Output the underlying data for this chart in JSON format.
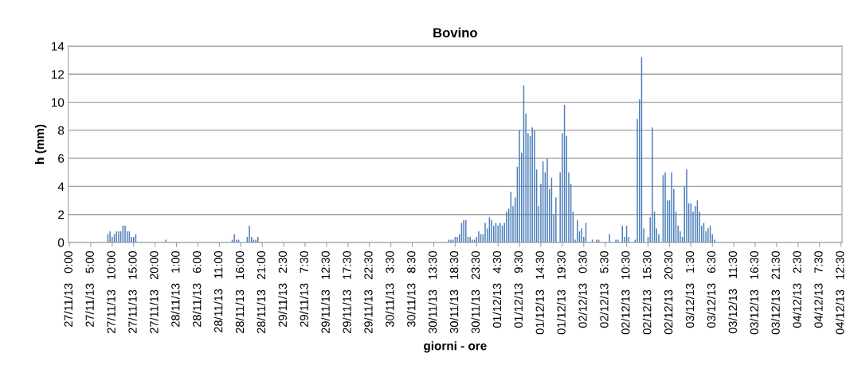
{
  "chart_data": {
    "type": "bar",
    "title": "Bovino",
    "xlabel": "giorni - ore",
    "ylabel": "h (mm)",
    "categories": [
      "27/11/13 0:00",
      null,
      null,
      null,
      null,
      null,
      null,
      null,
      null,
      null,
      "27/11/13 5:00",
      null,
      null,
      null,
      null,
      null,
      null,
      null,
      null,
      null,
      "27/11/13 10:00",
      null,
      null,
      null,
      null,
      null,
      null,
      null,
      null,
      null,
      "27/11/13 15:00",
      null,
      null,
      null,
      null,
      null,
      null,
      null,
      null,
      null,
      "27/11/13 20:00",
      null,
      null,
      null,
      null,
      null,
      null,
      null,
      null,
      null,
      "28/11/13 1:00",
      null,
      null,
      null,
      null,
      null,
      null,
      null,
      null,
      null,
      "28/11/13 6:00",
      null,
      null,
      null,
      null,
      null,
      null,
      null,
      null,
      null,
      "28/11/13 11:00",
      null,
      null,
      null,
      null,
      null,
      null,
      null,
      null,
      null,
      "28/11/13 16:00",
      null,
      null,
      null,
      null,
      null,
      null,
      null,
      null,
      null,
      "28/11/13 21:00",
      null,
      null,
      null,
      null,
      null,
      null,
      null,
      null,
      null,
      "29/11/13 2:30",
      null,
      null,
      null,
      null,
      null,
      null,
      null,
      null,
      null,
      "29/11/13 7:30",
      null,
      null,
      null,
      null,
      null,
      null,
      null,
      null,
      null,
      "29/11/13 12:30",
      null,
      null,
      null,
      null,
      null,
      null,
      null,
      null,
      null,
      "29/11/13 17:30",
      null,
      null,
      null,
      null,
      null,
      null,
      null,
      null,
      null,
      "29/11/13 22:30",
      null,
      null,
      null,
      null,
      null,
      null,
      null,
      null,
      null,
      "30/11/13 3:30",
      null,
      null,
      null,
      null,
      null,
      null,
      null,
      null,
      null,
      "30/11/13 8:30",
      null,
      null,
      null,
      null,
      null,
      null,
      null,
      null,
      null,
      "30/11/13 13:30",
      null,
      null,
      null,
      null,
      null,
      null,
      null,
      null,
      null,
      "30/11/13 18:30",
      null,
      null,
      null,
      null,
      null,
      null,
      null,
      null,
      null,
      "30/11/13 23:30",
      null,
      null,
      null,
      null,
      null,
      null,
      null,
      null,
      null,
      "01/12/13 4:30",
      null,
      null,
      null,
      null,
      null,
      null,
      null,
      null,
      null,
      "01/12/13 9:30",
      null,
      null,
      null,
      null,
      null,
      null,
      null,
      null,
      null,
      "01/12/13 14:30",
      null,
      null,
      null,
      null,
      null,
      null,
      null,
      null,
      null,
      "01/12/13 19:30",
      null,
      null,
      null,
      null,
      null,
      null,
      null,
      null,
      null,
      "02/12/13 0:30",
      null,
      null,
      null,
      null,
      null,
      null,
      null,
      null,
      null,
      "02/12/13 5:30",
      null,
      null,
      null,
      null,
      null,
      null,
      null,
      null,
      null,
      "02/12/13 10:30",
      null,
      null,
      null,
      null,
      null,
      null,
      null,
      null,
      null,
      "02/12/13 15:30",
      null,
      null,
      null,
      null,
      null,
      null,
      null,
      null,
      null,
      "02/12/13 20:30",
      null,
      null,
      null,
      null,
      null,
      null,
      null,
      null,
      null,
      "03/12/13 1:30",
      null,
      null,
      null,
      null,
      null,
      null,
      null,
      null,
      null,
      "03/12/13 6:30",
      null,
      null,
      null,
      null,
      null,
      null,
      null,
      null,
      null,
      "03/12/13 11:30",
      null,
      null,
      null,
      null,
      null,
      null,
      null,
      null,
      null,
      "03/12/13 16:30",
      null,
      null,
      null,
      null,
      null,
      null,
      null,
      null,
      null,
      "03/12/13 21:30",
      null,
      null,
      null,
      null,
      null,
      null,
      null,
      null,
      null,
      "04/12/13 2:30",
      null,
      null,
      null,
      null,
      null,
      null,
      null,
      null,
      null,
      "04/12/13 7:30",
      null,
      null,
      null,
      null,
      null,
      null,
      null,
      null,
      null,
      "04/12/13 12:30"
    ],
    "values": [
      0,
      0,
      0,
      0,
      0,
      0,
      0,
      0,
      0,
      0,
      0,
      0,
      0,
      0,
      0,
      0,
      0,
      0,
      0.6,
      0.8,
      0.4,
      0.6,
      0.8,
      0.8,
      0.8,
      1.2,
      1.2,
      0.8,
      0.8,
      0.4,
      0.4,
      0.6,
      0,
      0,
      0,
      0,
      0,
      0,
      0,
      0,
      0,
      0,
      0,
      0,
      0,
      0.2,
      0,
      0,
      0,
      0,
      0,
      0,
      0,
      0,
      0,
      0,
      0,
      0,
      0,
      0,
      0,
      0,
      0,
      0,
      0,
      0,
      0,
      0,
      0,
      0,
      0,
      0,
      0,
      0,
      0,
      0,
      0.2,
      0.6,
      0.2,
      0.2,
      0,
      0,
      0,
      0.4,
      1.2,
      0.4,
      0.2,
      0.2,
      0.4,
      0,
      0,
      0,
      0,
      0,
      0,
      0,
      0,
      0,
      0,
      0,
      0,
      0,
      0,
      0,
      0,
      0,
      0,
      0,
      0,
      0,
      0,
      0,
      0,
      0,
      0,
      0,
      0,
      0,
      0,
      0,
      0,
      0,
      0,
      0,
      0,
      0,
      0,
      0,
      0,
      0,
      0,
      0,
      0,
      0,
      0,
      0,
      0,
      0,
      0,
      0,
      0,
      0,
      0,
      0,
      0,
      0,
      0,
      0,
      0,
      0,
      0,
      0,
      0,
      0,
      0,
      0,
      0,
      0,
      0,
      0,
      0,
      0,
      0,
      0,
      0,
      0,
      0,
      0,
      0,
      0,
      0,
      0,
      0,
      0,
      0,
      0,
      0,
      0.2,
      0.2,
      0.2,
      0.4,
      0.4,
      0.6,
      1.4,
      1.6,
      1.6,
      0.4,
      0.4,
      0.2,
      0.2,
      0.4,
      0.8,
      0.6,
      0.6,
      1.4,
      1.0,
      1.8,
      1.6,
      1.2,
      1.4,
      1.2,
      1.4,
      1.2,
      1.4,
      2.2,
      2.4,
      3.6,
      2.6,
      3.2,
      5.4,
      8.0,
      6.4,
      11.2,
      9.2,
      7.8,
      7.6,
      8.2,
      8.0,
      5.2,
      2.6,
      4.2,
      5.8,
      5.0,
      6.0,
      3.8,
      4.6,
      2.0,
      3.2,
      0,
      5.0,
      7.8,
      9.8,
      7.6,
      5.0,
      4.2,
      2.2,
      0.2,
      1.6,
      0.8,
      1.0,
      0.4,
      1.4,
      0,
      0,
      0.2,
      0,
      0.2,
      0.2,
      0,
      0,
      0,
      0,
      0.6,
      0,
      0,
      0.2,
      0.2,
      0,
      1.2,
      0.4,
      1.2,
      0.4,
      0,
      0,
      0.2,
      8.8,
      10.2,
      13.2,
      1.0,
      0,
      0.4,
      1.8,
      8.2,
      2.2,
      1.0,
      0.6,
      0,
      4.8,
      5.0,
      3.0,
      3.0,
      5.0,
      3.8,
      2.2,
      1.2,
      0.8,
      0.4,
      4.0,
      5.2,
      2.8,
      2.8,
      2.2,
      2.6,
      3.0,
      2.2,
      1.2,
      1.4,
      0.8,
      1.0,
      1.2,
      0.6,
      0.2,
      0,
      0,
      0,
      0,
      0,
      0,
      0,
      0,
      0,
      0,
      0,
      0,
      0,
      0,
      0,
      0,
      0,
      0,
      0,
      0,
      0,
      0,
      0,
      0,
      0,
      0,
      0,
      0,
      0,
      0,
      0,
      0,
      0,
      0,
      0,
      0,
      0,
      0,
      0,
      0,
      0,
      0,
      0,
      0,
      0,
      0,
      0,
      0,
      0,
      0,
      0,
      0,
      0,
      0,
      0,
      0,
      0,
      0,
      0
    ],
    "color": "#4a7ebb",
    "ylim": [
      0,
      14
    ],
    "yticks": [
      0,
      2,
      4,
      6,
      8,
      10,
      12,
      14
    ],
    "grid": "y",
    "legend": false
  }
}
